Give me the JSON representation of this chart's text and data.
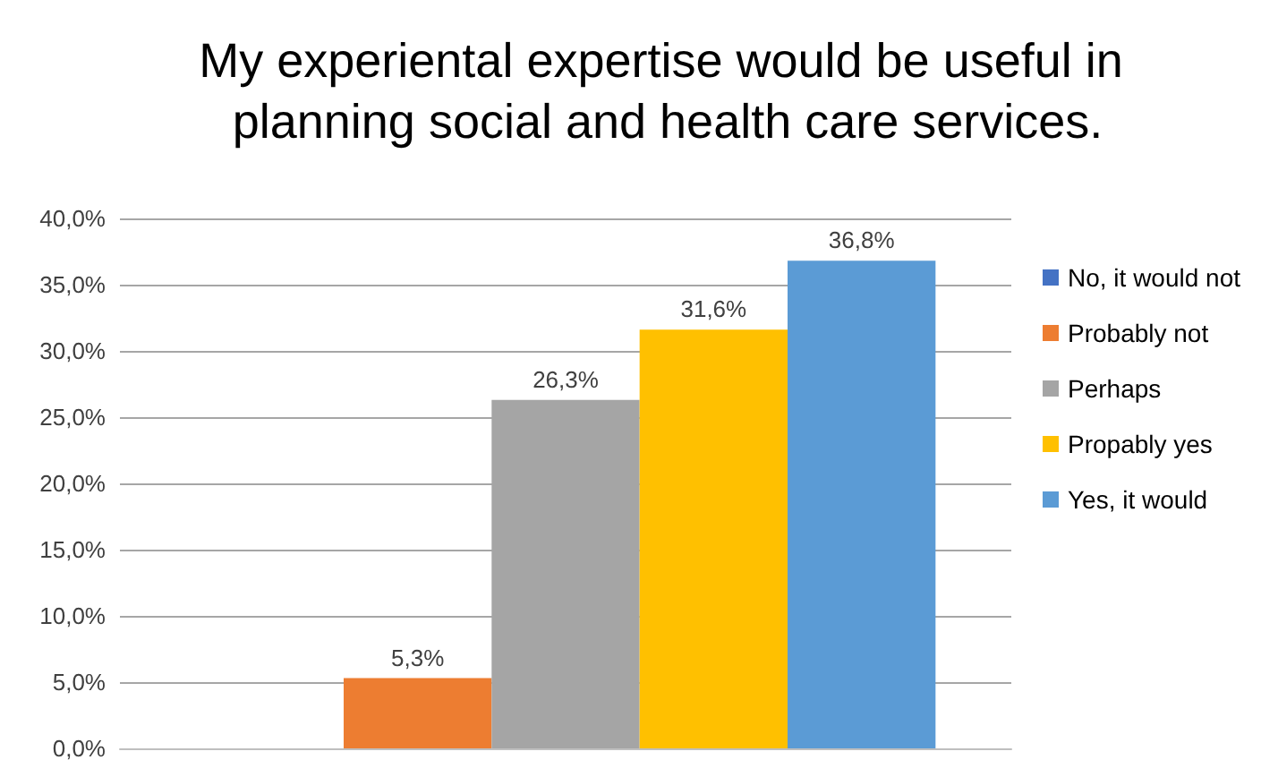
{
  "chart_data": {
    "type": "bar",
    "title": "My experiental expertise would be useful in planning social and health care services.",
    "categories": [
      null
    ],
    "series": [
      {
        "name": "No, it would not",
        "color": "#4472c4",
        "values": [
          0
        ],
        "value_labels": [
          null
        ]
      },
      {
        "name": "Probably not",
        "color": "#ed7d31",
        "values": [
          5.3
        ],
        "value_labels": [
          "5,3%"
        ]
      },
      {
        "name": "Perhaps",
        "color": "#a5a5a5",
        "values": [
          26.3
        ],
        "value_labels": [
          "26,3%"
        ]
      },
      {
        "name": "Propably yes",
        "color": "#ffc000",
        "values": [
          31.6
        ],
        "value_labels": [
          "31,6%"
        ]
      },
      {
        "name": "Yes, it would",
        "color": "#5b9bd5",
        "values": [
          36.8
        ],
        "value_labels": [
          "36,8%"
        ]
      }
    ],
    "ylim": [
      0,
      40
    ],
    "yticks": [
      {
        "value": 0,
        "label": "0,0%"
      },
      {
        "value": 5,
        "label": "5,0%"
      },
      {
        "value": 10,
        "label": "10,0%"
      },
      {
        "value": 15,
        "label": "15,0%"
      },
      {
        "value": 20,
        "label": "20,0%"
      },
      {
        "value": 25,
        "label": "25,0%"
      },
      {
        "value": 30,
        "label": "30,0%"
      },
      {
        "value": 35,
        "label": "35,0%"
      },
      {
        "value": 40,
        "label": "40,0%"
      }
    ],
    "grid": "y",
    "legend": "right"
  }
}
